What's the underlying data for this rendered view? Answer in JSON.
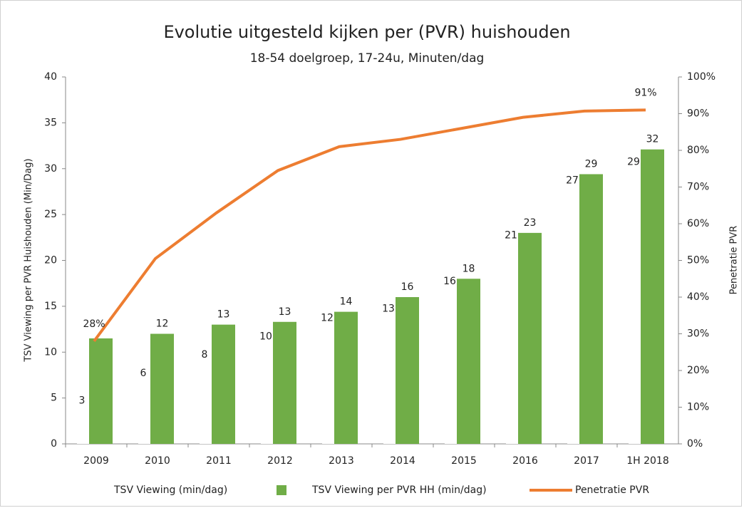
{
  "chart_data": {
    "type": "bar_line",
    "title": "Evolutie uitgesteld kijken per (PVR) huishouden",
    "subtitle": "18-54 doelgroep, 17-24u, Minuten/dag",
    "ylabel": "TSV Viewing per PVR Huishouden (Min/Dag)",
    "y2label": "Penetratie PVR",
    "categories": [
      "2009",
      "2010",
      "2011",
      "2012",
      "2013",
      "2014",
      "2015",
      "2016",
      "2017",
      "1H 2018"
    ],
    "ylim": [
      0,
      40
    ],
    "yticks": [
      0,
      5,
      10,
      15,
      20,
      25,
      30,
      35,
      40
    ],
    "y2lim": [
      0,
      100
    ],
    "y2ticks": [
      {
        "value": 0,
        "label": "0%"
      },
      {
        "value": 10,
        "label": "10%"
      },
      {
        "value": 20,
        "label": "20%"
      },
      {
        "value": 30,
        "label": "30%"
      },
      {
        "value": 40,
        "label": "40%"
      },
      {
        "value": 50,
        "label": "50%"
      },
      {
        "value": 60,
        "label": "60%"
      },
      {
        "value": 70,
        "label": "70%"
      },
      {
        "value": 80,
        "label": "80%"
      },
      {
        "value": 90,
        "label": "90%"
      },
      {
        "value": 100,
        "label": "100%"
      }
    ],
    "series": [
      {
        "name": "TSV Viewing (min/dag)",
        "color": "#ffffff",
        "kind": "bar",
        "values": [
          3,
          6,
          8,
          10,
          12,
          13,
          16,
          21,
          27,
          29
        ]
      },
      {
        "name": "TSV Viewing per PVR HH (min/dag)",
        "color": "#70ad47",
        "kind": "bar",
        "values": [
          11.5,
          12,
          13,
          13.3,
          14.4,
          16,
          18,
          23,
          29.4,
          32.1
        ],
        "value_labels": [
          null,
          "12",
          "13",
          "13",
          "14",
          "16",
          "18",
          "23",
          "29",
          "32"
        ]
      },
      {
        "name": "Penetratie PVR",
        "color": "#ed7d31",
        "kind": "line",
        "axis": "y2",
        "values": [
          28,
          50.5,
          63,
          74.5,
          81,
          83,
          86,
          89,
          90.7,
          91
        ],
        "value_labels": [
          "28%",
          null,
          null,
          null,
          null,
          null,
          null,
          null,
          null,
          "91%"
        ]
      }
    ]
  }
}
